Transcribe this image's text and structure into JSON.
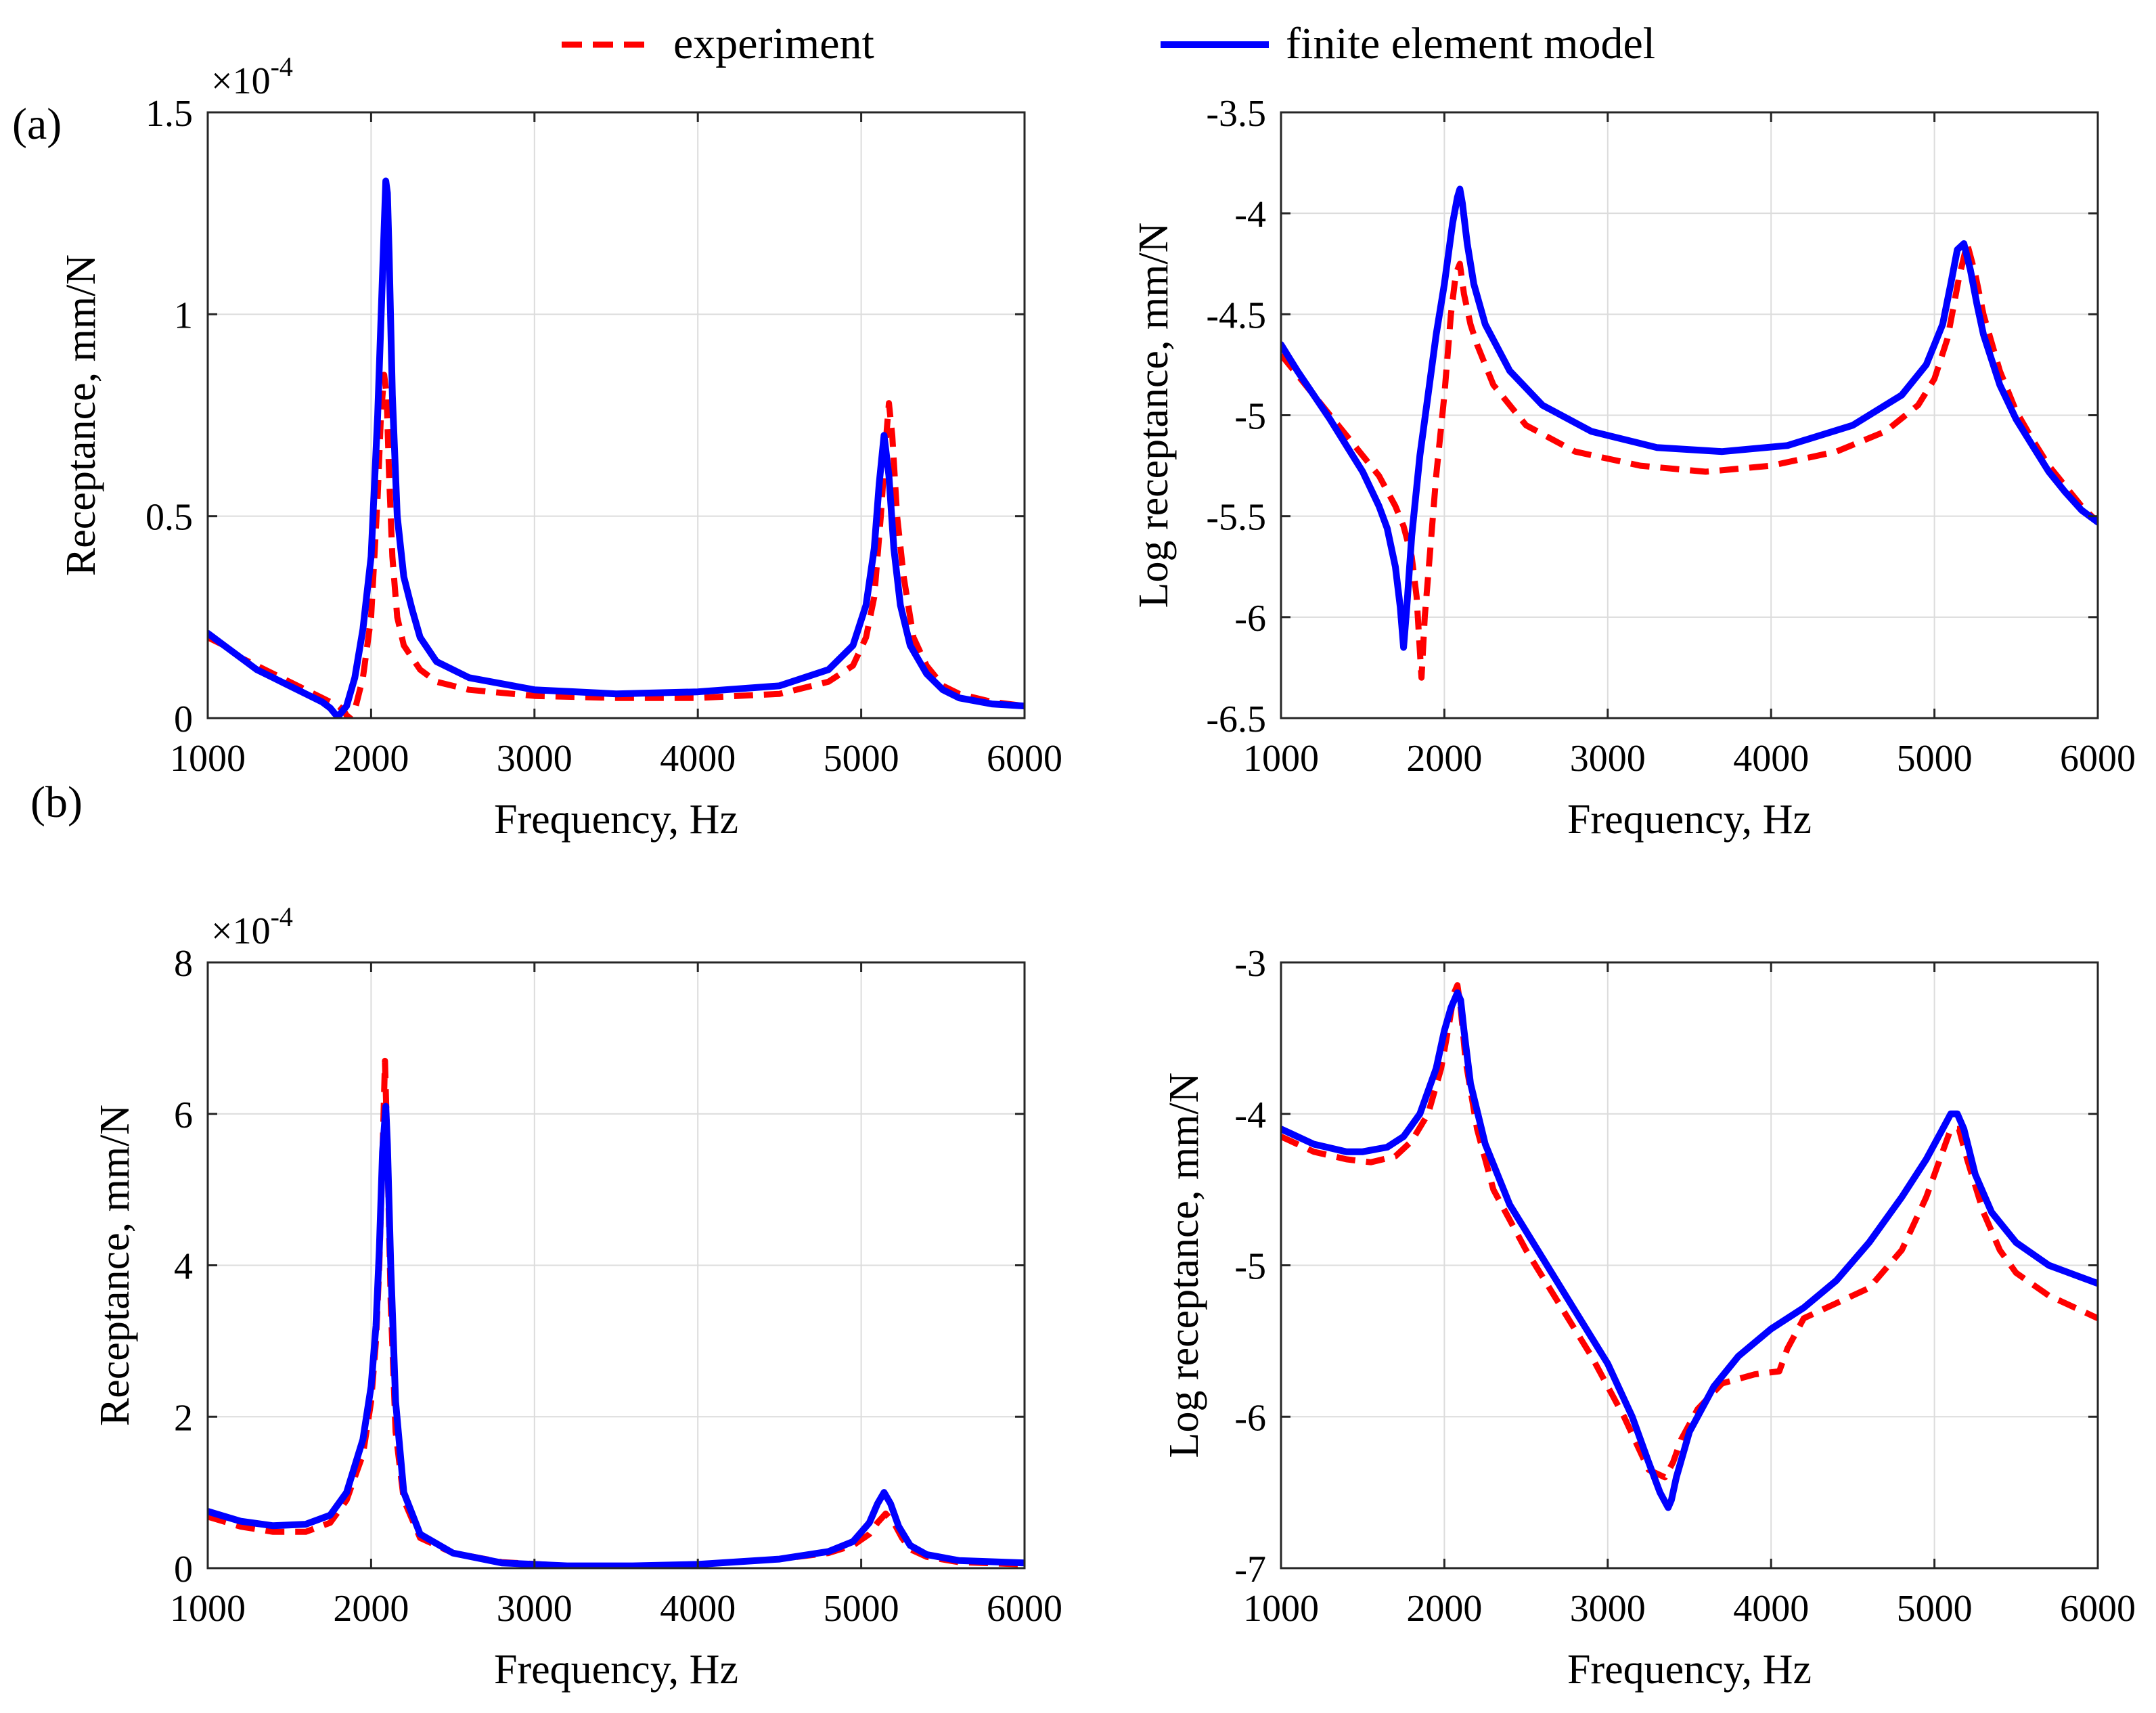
{
  "figure": {
    "panel_labels": [
      "(a)",
      "(b)"
    ],
    "legend": [
      {
        "key": "experiment",
        "label": "experiment",
        "color": "#ff0000",
        "style": "dashed"
      },
      {
        "key": "fem",
        "label": "finite element model",
        "color": "#0000ff",
        "style": "solid"
      }
    ]
  },
  "chart_data": [
    {
      "id": "a-linear",
      "type": "line",
      "panel": "(a)",
      "xlabel": "Frequency, Hz",
      "ylabel": "Receptance, mm/N",
      "xlim": [
        1000,
        6000
      ],
      "ylim": [
        0,
        1.5
      ],
      "xticks": [
        1000,
        2000,
        3000,
        4000,
        5000,
        6000
      ],
      "yticks": [
        0,
        0.5,
        1,
        1.5
      ],
      "ytick_labels": [
        "0",
        "0.5",
        "1",
        "1.5"
      ],
      "y_multiplier": {
        "base": "×10",
        "exponent": "-4"
      },
      "grid": true,
      "series": [
        {
          "name": "experiment",
          "x": [
            1000,
            1100,
            1200,
            1300,
            1400,
            1500,
            1600,
            1700,
            1750,
            1800,
            1830,
            1860,
            1900,
            1950,
            2000,
            2040,
            2060,
            2080,
            2095,
            2110,
            2130,
            2160,
            2200,
            2300,
            2400,
            2600,
            3000,
            3500,
            4000,
            4500,
            4800,
            4950,
            5030,
            5080,
            5120,
            5150,
            5170,
            5190,
            5220,
            5260,
            5320,
            5400,
            5500,
            5600,
            5800,
            6000
          ],
          "y": [
            0.2,
            0.18,
            0.15,
            0.13,
            0.11,
            0.09,
            0.07,
            0.05,
            0.04,
            0.03,
            0.02,
            0.0,
            0.02,
            0.1,
            0.25,
            0.55,
            0.75,
            0.85,
            0.8,
            0.6,
            0.4,
            0.25,
            0.18,
            0.12,
            0.09,
            0.07,
            0.055,
            0.05,
            0.05,
            0.06,
            0.09,
            0.13,
            0.2,
            0.3,
            0.5,
            0.68,
            0.78,
            0.7,
            0.5,
            0.35,
            0.2,
            0.13,
            0.08,
            0.06,
            0.04,
            0.03
          ]
        },
        {
          "name": "finite element model",
          "x": [
            1000,
            1100,
            1200,
            1300,
            1400,
            1500,
            1600,
            1700,
            1750,
            1780,
            1800,
            1850,
            1900,
            1950,
            2000,
            2040,
            2070,
            2090,
            2100,
            2110,
            2130,
            2160,
            2200,
            2250,
            2300,
            2400,
            2600,
            3000,
            3500,
            4000,
            4500,
            4800,
            4950,
            5030,
            5080,
            5110,
            5140,
            5170,
            5200,
            5240,
            5300,
            5400,
            5500,
            5600,
            5800,
            6000
          ],
          "y": [
            0.21,
            0.18,
            0.15,
            0.12,
            0.1,
            0.08,
            0.06,
            0.04,
            0.025,
            0.01,
            0.005,
            0.03,
            0.1,
            0.22,
            0.4,
            0.75,
            1.1,
            1.33,
            1.3,
            1.15,
            0.8,
            0.5,
            0.35,
            0.27,
            0.2,
            0.14,
            0.1,
            0.07,
            0.06,
            0.065,
            0.08,
            0.12,
            0.18,
            0.28,
            0.42,
            0.58,
            0.7,
            0.6,
            0.42,
            0.28,
            0.18,
            0.11,
            0.07,
            0.05,
            0.035,
            0.03
          ]
        }
      ]
    },
    {
      "id": "a-log",
      "type": "line",
      "panel": "(a)",
      "xlabel": "Frequency, Hz",
      "ylabel": "Log receptance, mm/N",
      "xlim": [
        1000,
        6000
      ],
      "ylim": [
        -6.5,
        -3.5
      ],
      "xticks": [
        1000,
        2000,
        3000,
        4000,
        5000,
        6000
      ],
      "yticks": [
        -6.5,
        -6,
        -5.5,
        -5,
        -4.5,
        -4,
        -3.5
      ],
      "ytick_labels": [
        "-6.5",
        "-6",
        "-5.5",
        "-5",
        "-4.5",
        "-4",
        "-3.5"
      ],
      "grid": true,
      "series": [
        {
          "name": "experiment",
          "x": [
            1000,
            1100,
            1200,
            1300,
            1400,
            1500,
            1600,
            1700,
            1750,
            1800,
            1830,
            1860,
            1880,
            1900,
            1950,
            2000,
            2040,
            2070,
            2095,
            2120,
            2160,
            2200,
            2300,
            2500,
            2800,
            3200,
            3600,
            4000,
            4400,
            4700,
            4900,
            5000,
            5080,
            5150,
            5200,
            5250,
            5300,
            5400,
            5500,
            5600,
            5700,
            5800,
            5900,
            6000
          ],
          "y": [
            -4.7,
            -4.8,
            -4.9,
            -5.0,
            -5.1,
            -5.2,
            -5.3,
            -5.45,
            -5.55,
            -5.7,
            -5.9,
            -6.3,
            -6.0,
            -5.8,
            -5.3,
            -4.9,
            -4.5,
            -4.3,
            -4.25,
            -4.4,
            -4.55,
            -4.65,
            -4.85,
            -5.05,
            -5.18,
            -5.25,
            -5.28,
            -5.25,
            -5.18,
            -5.08,
            -4.95,
            -4.82,
            -4.62,
            -4.32,
            -4.15,
            -4.3,
            -4.5,
            -4.78,
            -4.98,
            -5.12,
            -5.25,
            -5.35,
            -5.45,
            -5.53
          ]
        },
        {
          "name": "finite element model",
          "x": [
            1000,
            1100,
            1200,
            1300,
            1400,
            1500,
            1600,
            1650,
            1700,
            1730,
            1750,
            1770,
            1800,
            1850,
            1900,
            1950,
            2000,
            2050,
            2080,
            2095,
            2110,
            2140,
            2180,
            2250,
            2400,
            2600,
            2900,
            3300,
            3700,
            4100,
            4500,
            4800,
            4950,
            5050,
            5100,
            5140,
            5180,
            5220,
            5260,
            5300,
            5400,
            5500,
            5600,
            5700,
            5800,
            5900,
            6000
          ],
          "y": [
            -4.65,
            -4.78,
            -4.9,
            -5.02,
            -5.15,
            -5.28,
            -5.45,
            -5.56,
            -5.75,
            -5.95,
            -6.15,
            -5.95,
            -5.6,
            -5.2,
            -4.9,
            -4.6,
            -4.35,
            -4.05,
            -3.92,
            -3.88,
            -3.95,
            -4.15,
            -4.35,
            -4.55,
            -4.78,
            -4.95,
            -5.08,
            -5.16,
            -5.18,
            -5.15,
            -5.05,
            -4.9,
            -4.75,
            -4.55,
            -4.35,
            -4.18,
            -4.15,
            -4.28,
            -4.45,
            -4.6,
            -4.85,
            -5.02,
            -5.15,
            -5.28,
            -5.38,
            -5.47,
            -5.53
          ]
        }
      ]
    },
    {
      "id": "b-linear",
      "type": "line",
      "panel": "(b)",
      "xlabel": "Frequency, Hz",
      "ylabel": "Receptance, mm/N",
      "xlim": [
        1000,
        6000
      ],
      "ylim": [
        0,
        8
      ],
      "xticks": [
        1000,
        2000,
        3000,
        4000,
        5000,
        6000
      ],
      "yticks": [
        0,
        2,
        4,
        6,
        8
      ],
      "ytick_labels": [
        "0",
        "2",
        "4",
        "6",
        "8"
      ],
      "y_multiplier": {
        "base": "×10",
        "exponent": "-4"
      },
      "grid": true,
      "series": [
        {
          "name": "experiment",
          "x": [
            1000,
            1200,
            1400,
            1600,
            1750,
            1850,
            1950,
            2000,
            2030,
            2050,
            2070,
            2085,
            2100,
            2120,
            2150,
            2200,
            2300,
            2500,
            2800,
            3200,
            3600,
            4000,
            4500,
            4800,
            4950,
            5050,
            5100,
            5150,
            5200,
            5250,
            5300,
            5400,
            5600,
            6000
          ],
          "y": [
            0.68,
            0.55,
            0.48,
            0.48,
            0.6,
            0.9,
            1.5,
            2.2,
            3.0,
            4.0,
            5.5,
            6.7,
            5.5,
            3.5,
            1.8,
            0.9,
            0.4,
            0.2,
            0.08,
            0.03,
            0.03,
            0.05,
            0.12,
            0.2,
            0.3,
            0.45,
            0.6,
            0.72,
            0.6,
            0.4,
            0.25,
            0.15,
            0.08,
            0.05
          ]
        },
        {
          "name": "finite element model",
          "x": [
            1000,
            1200,
            1400,
            1600,
            1750,
            1850,
            1950,
            2000,
            2030,
            2050,
            2070,
            2090,
            2100,
            2120,
            2150,
            2200,
            2300,
            2500,
            2800,
            3200,
            3600,
            4000,
            4500,
            4800,
            4950,
            5050,
            5100,
            5140,
            5180,
            5230,
            5300,
            5400,
            5600,
            6000
          ],
          "y": [
            0.75,
            0.62,
            0.56,
            0.58,
            0.7,
            1.0,
            1.7,
            2.4,
            3.2,
            4.2,
            5.5,
            6.1,
            5.6,
            4.0,
            2.2,
            1.0,
            0.45,
            0.2,
            0.07,
            0.03,
            0.03,
            0.05,
            0.12,
            0.22,
            0.35,
            0.6,
            0.85,
            1.0,
            0.85,
            0.55,
            0.3,
            0.18,
            0.1,
            0.07
          ]
        }
      ]
    },
    {
      "id": "b-log",
      "type": "line",
      "panel": "(b)",
      "xlabel": "Frequency, Hz",
      "ylabel": "Log receptance, mm/N",
      "xlim": [
        1000,
        6000
      ],
      "ylim": [
        -7,
        -3
      ],
      "xticks": [
        1000,
        2000,
        3000,
        4000,
        5000,
        6000
      ],
      "yticks": [
        -7,
        -6,
        -5,
        -4,
        -3
      ],
      "ytick_labels": [
        "-7",
        "-6",
        "-5",
        "-4",
        "-3"
      ],
      "grid": true,
      "series": [
        {
          "name": "experiment",
          "x": [
            1000,
            1200,
            1400,
            1550,
            1700,
            1800,
            1900,
            1980,
            2030,
            2060,
            2080,
            2100,
            2130,
            2200,
            2300,
            2500,
            2700,
            2900,
            3100,
            3250,
            3350,
            3400,
            3450,
            3550,
            3700,
            3900,
            4050,
            4100,
            4200,
            4400,
            4600,
            4800,
            4950,
            5050,
            5100,
            5150,
            5200,
            5300,
            5400,
            5500,
            5700,
            5900,
            6000
          ],
          "y": [
            -4.15,
            -4.25,
            -4.3,
            -4.32,
            -4.28,
            -4.18,
            -4.0,
            -3.7,
            -3.4,
            -3.2,
            -3.15,
            -3.3,
            -3.65,
            -4.1,
            -4.5,
            -4.9,
            -5.25,
            -5.6,
            -6.0,
            -6.35,
            -6.4,
            -6.3,
            -6.15,
            -5.95,
            -5.78,
            -5.72,
            -5.7,
            -5.55,
            -5.35,
            -5.25,
            -5.15,
            -4.9,
            -4.55,
            -4.25,
            -4.1,
            -4.1,
            -4.3,
            -4.65,
            -4.9,
            -5.05,
            -5.2,
            -5.3,
            -5.35
          ]
        },
        {
          "name": "finite element model",
          "x": [
            1000,
            1200,
            1400,
            1500,
            1650,
            1750,
            1850,
            1950,
            2000,
            2040,
            2080,
            2100,
            2120,
            2160,
            2250,
            2400,
            2600,
            2800,
            3000,
            3150,
            3250,
            3320,
            3370,
            3390,
            3420,
            3500,
            3650,
            3800,
            4000,
            4200,
            4400,
            4600,
            4800,
            4950,
            5050,
            5100,
            5140,
            5180,
            5250,
            5350,
            5500,
            5700,
            5900,
            6000
          ],
          "y": [
            -4.1,
            -4.2,
            -4.25,
            -4.25,
            -4.22,
            -4.15,
            -4.0,
            -3.7,
            -3.45,
            -3.3,
            -3.2,
            -3.25,
            -3.45,
            -3.8,
            -4.2,
            -4.6,
            -4.95,
            -5.3,
            -5.65,
            -6.0,
            -6.3,
            -6.5,
            -6.6,
            -6.55,
            -6.4,
            -6.1,
            -5.8,
            -5.6,
            -5.42,
            -5.28,
            -5.1,
            -4.85,
            -4.55,
            -4.3,
            -4.1,
            -4.0,
            -4.0,
            -4.1,
            -4.4,
            -4.65,
            -4.85,
            -5.0,
            -5.08,
            -5.12
          ]
        }
      ]
    }
  ]
}
